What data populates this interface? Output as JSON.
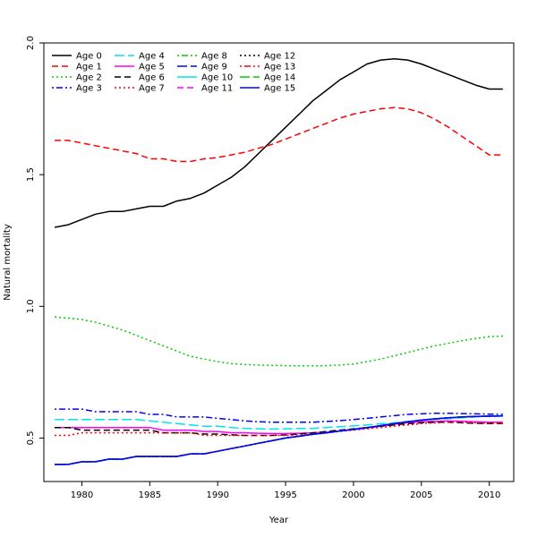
{
  "chart_data": {
    "type": "line",
    "xlabel": "Year",
    "ylabel": "Natural mortality",
    "xlim": [
      1977.2,
      2011.8
    ],
    "ylim": [
      0.335,
      2.0
    ],
    "x_ticks": [
      1980,
      1985,
      1990,
      1995,
      2000,
      2005,
      2010
    ],
    "x_tick_labels": [
      "1980",
      "1985",
      "1990",
      "1995",
      "2000",
      "2005",
      "2010"
    ],
    "y_ticks": [
      0.5,
      1.0,
      1.5,
      2.0
    ],
    "y_tick_labels": [
      "0.5",
      "1.0",
      "1.5",
      "2.0"
    ],
    "legend_placement": "top-left",
    "legend_columns": 4,
    "x": [
      1978,
      1979,
      1980,
      1981,
      1982,
      1983,
      1984,
      1985,
      1986,
      1987,
      1988,
      1989,
      1990,
      1991,
      1992,
      1993,
      1994,
      1995,
      1996,
      1997,
      1998,
      1999,
      2000,
      2001,
      2002,
      2003,
      2004,
      2005,
      2006,
      2007,
      2008,
      2009,
      2010,
      2011
    ],
    "series": [
      {
        "name": "Age 0",
        "color": "#000000",
        "dash": "solid",
        "values": [
          1.3,
          1.31,
          1.33,
          1.35,
          1.36,
          1.36,
          1.37,
          1.38,
          1.38,
          1.4,
          1.41,
          1.43,
          1.46,
          1.49,
          1.53,
          1.58,
          1.63,
          1.68,
          1.73,
          1.78,
          1.82,
          1.86,
          1.89,
          1.92,
          1.935,
          1.94,
          1.935,
          1.92,
          1.9,
          1.88,
          1.86,
          1.84,
          1.825,
          1.825
        ]
      },
      {
        "name": "Age 1",
        "color": "#ff0000",
        "dash": "dashed",
        "values": [
          1.63,
          1.63,
          1.62,
          1.61,
          1.6,
          1.59,
          1.58,
          1.56,
          1.56,
          1.55,
          1.55,
          1.56,
          1.565,
          1.575,
          1.585,
          1.6,
          1.615,
          1.635,
          1.655,
          1.675,
          1.695,
          1.715,
          1.73,
          1.74,
          1.75,
          1.755,
          1.75,
          1.735,
          1.71,
          1.68,
          1.645,
          1.61,
          1.575,
          1.575
        ]
      },
      {
        "name": "Age 2",
        "color": "#00cd00",
        "dash": "dotted",
        "values": [
          0.96,
          0.955,
          0.95,
          0.94,
          0.925,
          0.91,
          0.89,
          0.87,
          0.85,
          0.83,
          0.81,
          0.8,
          0.79,
          0.783,
          0.779,
          0.777,
          0.776,
          0.775,
          0.774,
          0.774,
          0.775,
          0.777,
          0.781,
          0.79,
          0.8,
          0.812,
          0.825,
          0.838,
          0.85,
          0.86,
          0.87,
          0.878,
          0.885,
          0.887
        ]
      },
      {
        "name": "Age 3",
        "color": "#0000ff",
        "dash": "dotdash",
        "values": [
          0.61,
          0.61,
          0.61,
          0.6,
          0.6,
          0.6,
          0.6,
          0.59,
          0.59,
          0.58,
          0.58,
          0.58,
          0.575,
          0.57,
          0.565,
          0.562,
          0.56,
          0.56,
          0.56,
          0.56,
          0.563,
          0.566,
          0.57,
          0.575,
          0.58,
          0.585,
          0.59,
          0.592,
          0.594,
          0.594,
          0.593,
          0.592,
          0.591,
          0.59
        ]
      },
      {
        "name": "Age 4",
        "color": "#00e5ee",
        "dash": "longdash",
        "values": [
          0.57,
          0.57,
          0.57,
          0.57,
          0.57,
          0.57,
          0.57,
          0.565,
          0.56,
          0.555,
          0.55,
          0.545,
          0.545,
          0.54,
          0.537,
          0.535,
          0.534,
          0.535,
          0.536,
          0.537,
          0.54,
          0.543,
          0.546,
          0.55,
          0.554,
          0.558,
          0.563,
          0.567,
          0.571,
          0.574,
          0.577,
          0.58,
          0.583,
          0.585
        ]
      },
      {
        "name": "Age 5",
        "color": "#ff00ff",
        "dash": "solid",
        "values": [
          0.54,
          0.54,
          0.54,
          0.54,
          0.54,
          0.54,
          0.54,
          0.54,
          0.53,
          0.53,
          0.53,
          0.525,
          0.525,
          0.52,
          0.52,
          0.518,
          0.517,
          0.517,
          0.518,
          0.52,
          0.523,
          0.527,
          0.532,
          0.538,
          0.545,
          0.552,
          0.558,
          0.562,
          0.564,
          0.565,
          0.564,
          0.562,
          0.56,
          0.56
        ]
      },
      {
        "name": "Age 6",
        "color": "#000000",
        "dash": "dashed",
        "values": [
          0.54,
          0.54,
          0.53,
          0.53,
          0.53,
          0.53,
          0.53,
          0.53,
          0.52,
          0.52,
          0.52,
          0.515,
          0.515,
          0.512,
          0.51,
          0.51,
          0.51,
          0.512,
          0.515,
          0.52,
          0.525,
          0.53,
          0.535,
          0.54,
          0.545,
          0.55,
          0.555,
          0.558,
          0.56,
          0.56,
          0.558,
          0.556,
          0.555,
          0.555
        ]
      },
      {
        "name": "Age 7",
        "color": "#ff0000",
        "dash": "dotted",
        "values": [
          0.51,
          0.51,
          0.52,
          0.52,
          0.52,
          0.52,
          0.52,
          0.52,
          0.52,
          0.52,
          0.52,
          0.51,
          0.51,
          0.51,
          0.51,
          0.51,
          0.51,
          0.51,
          0.512,
          0.515,
          0.52,
          0.525,
          0.53,
          0.535,
          0.54,
          0.545,
          0.55,
          0.555,
          0.558,
          0.56,
          0.56,
          0.558,
          0.556,
          0.555
        ]
      },
      {
        "name": "Age 8",
        "color": "#00cd00",
        "dash": "dotdash",
        "values": [
          0.4,
          0.4,
          0.41,
          0.41,
          0.42,
          0.42,
          0.43,
          0.43,
          0.43,
          0.43,
          0.44,
          0.44,
          0.45,
          0.46,
          0.47,
          0.48,
          0.49,
          0.5,
          0.507,
          0.514,
          0.52,
          0.527,
          0.533,
          0.54,
          0.547,
          0.555,
          0.562,
          0.568,
          0.573,
          0.577,
          0.58,
          0.582,
          0.583,
          0.584
        ]
      },
      {
        "name": "Age 9",
        "color": "#0000ff",
        "dash": "longdash",
        "values": [
          0.4,
          0.4,
          0.41,
          0.41,
          0.42,
          0.42,
          0.43,
          0.43,
          0.43,
          0.43,
          0.44,
          0.44,
          0.45,
          0.46,
          0.47,
          0.48,
          0.49,
          0.5,
          0.507,
          0.514,
          0.52,
          0.527,
          0.533,
          0.54,
          0.547,
          0.555,
          0.562,
          0.568,
          0.573,
          0.577,
          0.58,
          0.582,
          0.583,
          0.584
        ]
      },
      {
        "name": "Age 10",
        "color": "#00e5ee",
        "dash": "solid",
        "values": [
          0.4,
          0.4,
          0.41,
          0.41,
          0.42,
          0.42,
          0.43,
          0.43,
          0.43,
          0.43,
          0.44,
          0.44,
          0.45,
          0.46,
          0.47,
          0.48,
          0.49,
          0.5,
          0.507,
          0.514,
          0.52,
          0.527,
          0.533,
          0.54,
          0.547,
          0.555,
          0.562,
          0.568,
          0.573,
          0.577,
          0.58,
          0.582,
          0.583,
          0.584
        ]
      },
      {
        "name": "Age 11",
        "color": "#ff00ff",
        "dash": "dashed",
        "values": [
          0.4,
          0.4,
          0.41,
          0.41,
          0.42,
          0.42,
          0.43,
          0.43,
          0.43,
          0.43,
          0.44,
          0.44,
          0.45,
          0.46,
          0.47,
          0.48,
          0.49,
          0.5,
          0.507,
          0.514,
          0.52,
          0.527,
          0.533,
          0.54,
          0.547,
          0.555,
          0.562,
          0.568,
          0.573,
          0.577,
          0.58,
          0.582,
          0.583,
          0.584
        ]
      },
      {
        "name": "Age 12",
        "color": "#000000",
        "dash": "dotted",
        "values": [
          0.4,
          0.4,
          0.41,
          0.41,
          0.42,
          0.42,
          0.43,
          0.43,
          0.43,
          0.43,
          0.44,
          0.44,
          0.45,
          0.46,
          0.47,
          0.48,
          0.49,
          0.5,
          0.507,
          0.514,
          0.52,
          0.527,
          0.533,
          0.54,
          0.547,
          0.555,
          0.562,
          0.568,
          0.573,
          0.577,
          0.58,
          0.582,
          0.583,
          0.584
        ]
      },
      {
        "name": "Age 13",
        "color": "#ff0000",
        "dash": "dotdash",
        "values": [
          0.4,
          0.4,
          0.41,
          0.41,
          0.42,
          0.42,
          0.43,
          0.43,
          0.43,
          0.43,
          0.44,
          0.44,
          0.45,
          0.46,
          0.47,
          0.48,
          0.49,
          0.5,
          0.507,
          0.514,
          0.52,
          0.527,
          0.533,
          0.54,
          0.547,
          0.555,
          0.562,
          0.568,
          0.573,
          0.577,
          0.58,
          0.582,
          0.583,
          0.584
        ]
      },
      {
        "name": "Age 14",
        "color": "#00cd00",
        "dash": "longdash",
        "values": [
          0.4,
          0.4,
          0.41,
          0.41,
          0.42,
          0.42,
          0.43,
          0.43,
          0.43,
          0.43,
          0.44,
          0.44,
          0.45,
          0.46,
          0.47,
          0.48,
          0.49,
          0.5,
          0.507,
          0.514,
          0.52,
          0.527,
          0.533,
          0.54,
          0.547,
          0.555,
          0.562,
          0.568,
          0.573,
          0.577,
          0.58,
          0.582,
          0.583,
          0.584
        ]
      },
      {
        "name": "Age 15",
        "color": "#0000ff",
        "dash": "solid",
        "values": [
          0.4,
          0.4,
          0.41,
          0.41,
          0.42,
          0.42,
          0.43,
          0.43,
          0.43,
          0.43,
          0.44,
          0.44,
          0.45,
          0.46,
          0.47,
          0.48,
          0.49,
          0.5,
          0.507,
          0.514,
          0.52,
          0.527,
          0.533,
          0.54,
          0.547,
          0.555,
          0.562,
          0.568,
          0.573,
          0.577,
          0.58,
          0.582,
          0.583,
          0.584
        ]
      }
    ]
  }
}
